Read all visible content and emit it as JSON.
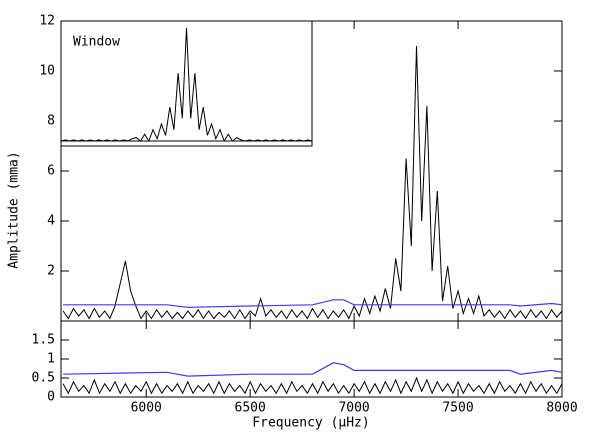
{
  "chart_data": [
    {
      "type": "line",
      "ylabel": "Amplitude (mma)",
      "xlim": [
        5590,
        8000
      ],
      "ylim": [
        0,
        12
      ],
      "yticks": [
        2,
        4,
        6,
        8,
        10,
        12
      ],
      "series": [
        {
          "color": "#000000",
          "x": [
            5600,
            5625,
            5650,
            5675,
            5700,
            5725,
            5750,
            5775,
            5800,
            5825,
            5850,
            5875,
            5900,
            5925,
            5950,
            5975,
            6000,
            6025,
            6050,
            6075,
            6100,
            6125,
            6150,
            6175,
            6200,
            6225,
            6250,
            6275,
            6300,
            6325,
            6350,
            6375,
            6400,
            6425,
            6450,
            6475,
            6500,
            6525,
            6550,
            6575,
            6600,
            6625,
            6650,
            6675,
            6700,
            6725,
            6750,
            6775,
            6800,
            6825,
            6850,
            6875,
            6900,
            6925,
            6950,
            6975,
            7000,
            7025,
            7050,
            7075,
            7100,
            7125,
            7150,
            7175,
            7200,
            7225,
            7250,
            7275,
            7300,
            7325,
            7350,
            7375,
            7400,
            7425,
            7450,
            7475,
            7500,
            7525,
            7550,
            7575,
            7600,
            7625,
            7650,
            7675,
            7700,
            7725,
            7750,
            7775,
            7800,
            7825,
            7850,
            7875,
            7900,
            7925,
            7950,
            7975,
            8000
          ],
          "values": [
            0.4,
            0.1,
            0.5,
            0.2,
            0.45,
            0.1,
            0.5,
            0.15,
            0.4,
            0.1,
            0.6,
            1.5,
            2.4,
            1.2,
            0.6,
            0.1,
            0.4,
            0.1,
            0.45,
            0.15,
            0.4,
            0.1,
            0.35,
            0.1,
            0.4,
            0.15,
            0.45,
            0.1,
            0.4,
            0.1,
            0.35,
            0.15,
            0.4,
            0.1,
            0.45,
            0.1,
            0.4,
            0.2,
            0.9,
            0.2,
            0.45,
            0.15,
            0.4,
            0.1,
            0.45,
            0.15,
            0.4,
            0.1,
            0.5,
            0.15,
            0.45,
            0.1,
            0.4,
            0.15,
            0.45,
            0.1,
            0.6,
            0.2,
            0.9,
            0.3,
            1.0,
            0.4,
            1.3,
            0.5,
            2.5,
            1.2,
            6.5,
            3.0,
            11.0,
            4.0,
            8.6,
            2.0,
            5.2,
            0.8,
            2.2,
            0.5,
            1.2,
            0.3,
            0.9,
            0.3,
            1.0,
            0.2,
            0.45,
            0.15,
            0.4,
            0.1,
            0.45,
            0.15,
            0.4,
            0.1,
            0.45,
            0.15,
            0.4,
            0.1,
            0.45,
            0.15,
            0.4
          ]
        },
        {
          "color": "#3a3aff",
          "x": [
            5600,
            6100,
            6200,
            6500,
            6800,
            6900,
            6950,
            7000,
            7750,
            7800,
            7950,
            8000
          ],
          "values": [
            0.65,
            0.65,
            0.55,
            0.6,
            0.65,
            0.85,
            0.85,
            0.65,
            0.65,
            0.6,
            0.7,
            0.65
          ]
        }
      ]
    },
    {
      "type": "line",
      "xlabel": "Frequency (μHz)",
      "xlim": [
        5590,
        8000
      ],
      "ylim": [
        0,
        2
      ],
      "xticks": [
        6000,
        6500,
        7000,
        7500,
        8000
      ],
      "yticks": [
        0,
        0.5,
        1,
        1.5
      ],
      "series": [
        {
          "color": "#000000",
          "x": [
            5600,
            5625,
            5650,
            5675,
            5700,
            5725,
            5750,
            5775,
            5800,
            5825,
            5850,
            5875,
            5900,
            5925,
            5950,
            5975,
            6000,
            6025,
            6050,
            6075,
            6100,
            6125,
            6150,
            6175,
            6200,
            6225,
            6250,
            6275,
            6300,
            6325,
            6350,
            6375,
            6400,
            6425,
            6450,
            6475,
            6500,
            6525,
            6550,
            6575,
            6600,
            6625,
            6650,
            6675,
            6700,
            6725,
            6750,
            6775,
            6800,
            6825,
            6850,
            6875,
            6900,
            6925,
            6950,
            6975,
            7000,
            7025,
            7050,
            7075,
            7100,
            7125,
            7150,
            7175,
            7200,
            7225,
            7250,
            7275,
            7300,
            7325,
            7350,
            7375,
            7400,
            7425,
            7450,
            7475,
            7500,
            7525,
            7550,
            7575,
            7600,
            7625,
            7650,
            7675,
            7700,
            7725,
            7750,
            7775,
            7800,
            7825,
            7850,
            7875,
            7900,
            7925,
            7950,
            7975,
            8000
          ],
          "values": [
            0.35,
            0.1,
            0.4,
            0.15,
            0.3,
            0.1,
            0.45,
            0.1,
            0.35,
            0.15,
            0.4,
            0.1,
            0.35,
            0.1,
            0.3,
            0.15,
            0.4,
            0.1,
            0.35,
            0.1,
            0.3,
            0.15,
            0.35,
            0.1,
            0.4,
            0.1,
            0.3,
            0.15,
            0.35,
            0.1,
            0.4,
            0.1,
            0.35,
            0.15,
            0.3,
            0.1,
            0.4,
            0.1,
            0.35,
            0.15,
            0.3,
            0.1,
            0.35,
            0.1,
            0.4,
            0.15,
            0.3,
            0.1,
            0.35,
            0.1,
            0.4,
            0.15,
            0.35,
            0.1,
            0.3,
            0.1,
            0.35,
            0.15,
            0.4,
            0.1,
            0.35,
            0.1,
            0.4,
            0.15,
            0.45,
            0.1,
            0.4,
            0.15,
            0.5,
            0.15,
            0.45,
            0.1,
            0.4,
            0.15,
            0.35,
            0.1,
            0.4,
            0.1,
            0.35,
            0.15,
            0.3,
            0.1,
            0.35,
            0.1,
            0.4,
            0.15,
            0.3,
            0.1,
            0.35,
            0.1,
            0.4,
            0.15,
            0.35,
            0.1,
            0.3,
            0.1,
            0.35
          ]
        },
        {
          "color": "#3a3aff",
          "x": [
            5600,
            6100,
            6200,
            6500,
            6800,
            6900,
            6950,
            7000,
            7750,
            7800,
            7950,
            8000
          ],
          "values": [
            0.6,
            0.65,
            0.55,
            0.6,
            0.6,
            0.9,
            0.85,
            0.7,
            0.7,
            0.6,
            0.7,
            0.65
          ]
        }
      ]
    },
    {
      "type": "line",
      "title": "Window",
      "series": [
        {
          "color": "#000000",
          "values": [
            0,
            0.01,
            0,
            0.01,
            0,
            0.01,
            0,
            0.01,
            0,
            0.01,
            0,
            0.01,
            0,
            0.01,
            0,
            0.01,
            0,
            0.02,
            0.03,
            0,
            0.06,
            0,
            0.1,
            0.02,
            0.15,
            0.05,
            0.3,
            0.1,
            0.6,
            0.2,
            1.0,
            0.2,
            0.6,
            0.1,
            0.3,
            0.05,
            0.15,
            0.02,
            0.1,
            0,
            0.06,
            0,
            0.03,
            0.01,
            0,
            0.01,
            0,
            0.01,
            0,
            0.01,
            0,
            0.01,
            0,
            0.01,
            0,
            0.01,
            0,
            0.01,
            0,
            0.01,
            0
          ]
        }
      ]
    }
  ]
}
